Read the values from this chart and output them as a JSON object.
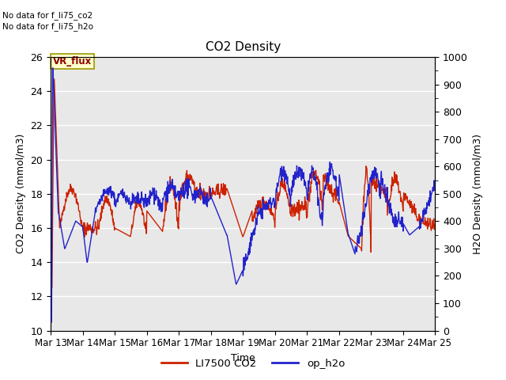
{
  "title": "CO2 Density",
  "xlabel": "Time",
  "ylabel_left": "CO2 Density (mmol/m3)",
  "ylabel_right": "H2O Density (mmol/m3)",
  "ylim_left": [
    10,
    26
  ],
  "ylim_right": [
    0,
    1000
  ],
  "yticks_left": [
    10,
    12,
    14,
    16,
    18,
    20,
    22,
    24,
    26
  ],
  "yticks_right": [
    0,
    100,
    200,
    300,
    400,
    500,
    600,
    700,
    800,
    900,
    1000
  ],
  "xtick_days": [
    13,
    14,
    15,
    16,
    17,
    18,
    19,
    20,
    21,
    22,
    23,
    24,
    25
  ],
  "xtick_labels": [
    "Mar 13",
    "Mar 14",
    "Mar 15",
    "Mar 16",
    "Mar 17",
    "Mar 18",
    "Mar 19",
    "Mar 20",
    "Mar 21",
    "Mar 22",
    "Mar 23",
    "Mar 24",
    "Mar 25"
  ],
  "legend_labels": [
    "LI7500 CO2",
    "op_h2o"
  ],
  "legend_colors": [
    "#cc2200",
    "#2222cc"
  ],
  "line_color_co2": "#cc2200",
  "line_color_h2o": "#2222cc",
  "annotation_text": "VR_flux",
  "no_data_text1": "No data for f_li75_co2",
  "no_data_text2": "No data for f_li75_h2o",
  "bg_color": "#e8e8e8",
  "grid_color": "#ffffff",
  "fig_bg": "#ffffff"
}
